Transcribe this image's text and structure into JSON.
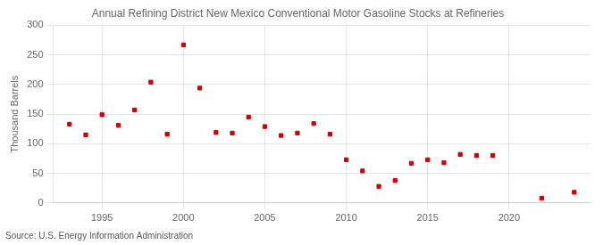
{
  "chart_data": {
    "type": "scatter",
    "title": "Annual Refining District New Mexico Conventional Motor Gasoline Stocks at Refineries",
    "y_label": "Thousand Barrels",
    "annotations": [
      "Source: U.S. Energy Information Administration"
    ],
    "x": [
      1993,
      1994,
      1995,
      1996,
      1997,
      1998,
      1999,
      2000,
      2001,
      2002,
      2003,
      2004,
      2005,
      2006,
      2007,
      2008,
      2009,
      2010,
      2011,
      2012,
      2013,
      2014,
      2015,
      2016,
      2017,
      2018,
      2019,
      2022,
      2024
    ],
    "values": [
      133,
      115,
      149,
      131,
      157,
      204,
      116,
      267,
      194,
      119,
      118,
      145,
      129,
      114,
      118,
      134,
      116,
      73,
      54,
      28,
      38,
      67,
      73,
      68,
      82,
      80,
      80,
      8,
      18
    ],
    "color": "#cc0000",
    "marker": "square",
    "xlim": [
      1992,
      2025
    ],
    "xticks": [
      1995,
      2000,
      2005,
      2010,
      2015,
      2020
    ],
    "ylim": [
      0,
      300
    ],
    "yticks": [
      0,
      50,
      100,
      150,
      200,
      250,
      300
    ],
    "grid": true
  }
}
